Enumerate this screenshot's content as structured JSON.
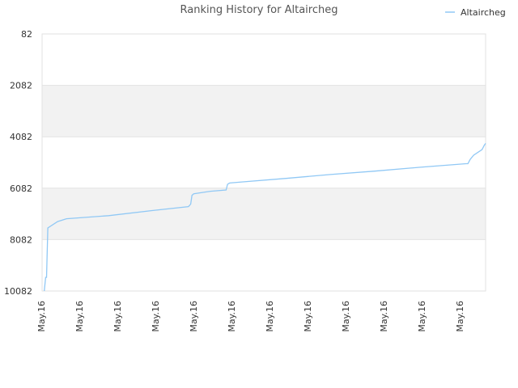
{
  "chart_data": {
    "type": "line",
    "title": "Ranking History for Altaircheg",
    "xlabel": "",
    "ylabel": "",
    "y_inverted": true,
    "ylim": [
      10082,
      82
    ],
    "y_ticks": [
      "82",
      "2082",
      "4082",
      "6082",
      "8082",
      "10082"
    ],
    "y_tick_values": [
      82,
      2082,
      4082,
      6082,
      8082,
      10082
    ],
    "x_tick_labels": [
      "May.16",
      "May.16",
      "May.16",
      "May.16",
      "May.16",
      "May.16",
      "May.16",
      "May.16",
      "May.16",
      "May.16",
      "May.16",
      "May.16"
    ],
    "x_range": [
      0,
      100
    ],
    "grid": true,
    "alternating_bands": true,
    "legend_position": "top-right",
    "series": [
      {
        "name": "Altaircheg",
        "color": "#90c8f5",
        "x": [
          0.5,
          0.8,
          1.0,
          1.3,
          3.5,
          5.5,
          15,
          25,
          33.0,
          33.5,
          33.8,
          34.2,
          38,
          41.5,
          41.8,
          42.3,
          45,
          55,
          65,
          75,
          85,
          95.6,
          96,
          96.5,
          97.3,
          99.2,
          99.7,
          100
        ],
        "y": [
          10082,
          9550,
          9550,
          7630,
          7380,
          7270,
          7150,
          6950,
          6800,
          6700,
          6360,
          6300,
          6200,
          6150,
          5930,
          5880,
          5840,
          5700,
          5550,
          5420,
          5270,
          5130,
          5130,
          4970,
          4800,
          4580,
          4410,
          4340
        ]
      }
    ]
  }
}
